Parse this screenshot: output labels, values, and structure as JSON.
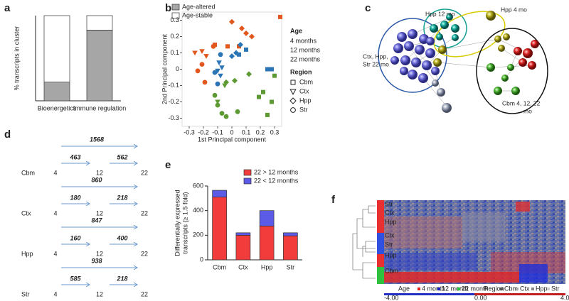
{
  "panel_labels": [
    "a",
    "b",
    "c",
    "d",
    "e",
    "f"
  ],
  "chart_data": [
    {
      "type": "bar",
      "stacked": true,
      "ylabel": "% transcripts in cluster",
      "categories": [
        "Bioenergetics",
        "Immune regulation"
      ],
      "series": [
        {
          "name": "Age-altered",
          "color": "#a6a6a6",
          "values": [
            22,
            83
          ]
        },
        {
          "name": "Age-stable",
          "color": "#ffffff",
          "values": [
            78,
            17
          ]
        }
      ],
      "ylim": [
        0,
        100
      ]
    },
    {
      "type": "scatter",
      "xlabel": "1st Principal component",
      "ylabel": "2nd Principal component",
      "legend_title": "Age",
      "region_title": "Region",
      "regions": [
        {
          "name": "Cbm",
          "marker": "square"
        },
        {
          "name": "Ctx",
          "marker": "triangle-down"
        },
        {
          "name": "Hpp",
          "marker": "diamond"
        },
        {
          "name": "Str",
          "marker": "circle"
        }
      ],
      "xlim": [
        -0.35,
        0.35
      ],
      "ylim": [
        -0.35,
        0.35
      ],
      "xticks": [
        -0.3,
        -0.2,
        -0.1,
        0,
        0.1,
        0.2,
        0.3
      ],
      "yticks": [
        -0.3,
        -0.2,
        -0.1,
        0,
        0.1,
        0.2,
        0.3
      ],
      "series": [
        {
          "name": "4 months",
          "color": "#e2571e",
          "x": [
            0.34,
            -0.03,
            0.05,
            -0.12,
            -0.26,
            -0.21,
            -0.18,
            0.0,
            0.07,
            0.1,
            0.14,
            -0.21,
            -0.24,
            -0.19,
            -0.13
          ],
          "values": [
            0.32,
            0.14,
            0.14,
            0.15,
            0.1,
            0.11,
            0.08,
            0.29,
            0.25,
            0.22,
            0.2,
            0.03,
            -0.01,
            -0.08,
            0.14
          ],
          "regions": [
            "Cbm",
            "Cbm",
            "Cbm",
            "Cbm",
            "Ctx",
            "Ctx",
            "Ctx",
            "Hpp",
            "Hpp",
            "Hpp",
            "Hpp",
            "Str",
            "Str",
            "Str",
            "Str"
          ]
        },
        {
          "name": "12 months",
          "color": "#2b74b5",
          "x": [
            0.25,
            0.28,
            0.05,
            0.1,
            -0.09,
            -0.07,
            -0.1,
            -0.08,
            0.0,
            0.06,
            0.03,
            -0.12,
            -0.08,
            -0.1
          ],
          "values": [
            0.0,
            0.0,
            0.09,
            0.12,
            0.04,
            0.01,
            -0.01,
            -0.04,
            0.08,
            0.15,
            0.1,
            -0.02,
            0.09,
            -0.09
          ],
          "regions": [
            "Cbm",
            "Cbm",
            "Cbm",
            "Cbm",
            "Ctx",
            "Ctx",
            "Ctx",
            "Ctx",
            "Hpp",
            "Hpp",
            "Hpp",
            "Str",
            "Str",
            "Str"
          ]
        },
        {
          "name": "22 months",
          "color": "#5d9a34",
          "x": [
            0.22,
            0.28,
            0.19,
            0.25,
            0.3,
            -0.1,
            -0.05,
            -0.04,
            0.02,
            0.12,
            -0.12,
            -0.1,
            -0.04,
            0.04,
            -0.07
          ],
          "values": [
            -0.14,
            -0.2,
            -0.17,
            -0.28,
            -0.04,
            -0.2,
            -0.1,
            -0.08,
            -0.07,
            -0.03,
            -0.16,
            -0.22,
            -0.29,
            -0.26,
            -0.27
          ],
          "regions": [
            "Cbm",
            "Cbm",
            "Cbm",
            "Cbm",
            "Cbm",
            "Ctx",
            "Ctx",
            "Hpp",
            "Hpp",
            "Hpp",
            "Str",
            "Str",
            "Str",
            "Str",
            "Str"
          ]
        }
      ]
    },
    {
      "type": "bar",
      "stacked": true,
      "ylabel": [
        "Differentially expressed",
        "transcripts (≥ 1.5 fold)"
      ],
      "categories": [
        "Cbm",
        "Ctx",
        "Hpp",
        "Str"
      ],
      "series": [
        {
          "name": "22 > 12 months",
          "color": "#f23c3c",
          "values": [
            510,
            200,
            275,
            195
          ]
        },
        {
          "name": "22 < 12 months",
          "color": "#5b5be8",
          "values": [
            55,
            20,
            125,
            25
          ]
        }
      ],
      "ylim": [
        0,
        600
      ],
      "yticks": [
        0,
        200,
        400,
        600
      ]
    }
  ],
  "network": {
    "labels": [
      [
        "Hpp 12 mo"
      ],
      [
        "Hpp 4 mo"
      ],
      [
        "Ctx, Hpp,",
        "Str 22 mo"
      ],
      [
        "Cbm 4, 12, 22",
        "mo"
      ]
    ]
  },
  "transitions": {
    "ages": [
      "4",
      "12",
      "22"
    ],
    "age_colors": [
      "#e21d1d",
      "#25259e",
      "#2ca04c"
    ],
    "rows": [
      {
        "region": "Cbm",
        "steps": [
          463,
          562
        ],
        "total": 1568
      },
      {
        "region": "Ctx",
        "steps": [
          180,
          218
        ],
        "total": 860
      },
      {
        "region": "Hpp",
        "steps": [
          160,
          400
        ],
        "total": 847
      },
      {
        "region": "Str",
        "steps": [
          585,
          218
        ],
        "total": 938
      }
    ]
  },
  "heatmap": {
    "row_labels": [
      "Str",
      "Ctx",
      "Hpp",
      "Ctx",
      "Str",
      "Hpp",
      "Cbm"
    ],
    "age_title": "Age",
    "age_items": [
      "4 month",
      "12 month",
      "22 month"
    ],
    "region_title": "Region",
    "region_items": [
      "Cbm",
      "Ctx",
      "Hpp",
      "Str"
    ],
    "scale": [
      "-4.00",
      "0.00",
      "4.00"
    ]
  }
}
